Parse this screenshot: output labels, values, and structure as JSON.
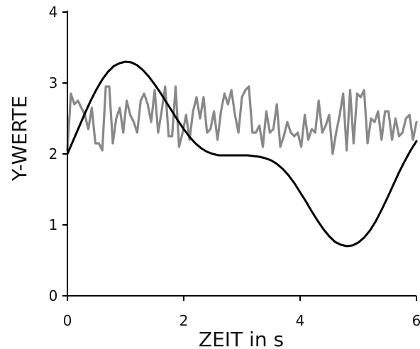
{
  "chart_data": {
    "type": "line",
    "xlabel": "ZEIT in s",
    "ylabel": "Y-WERTE",
    "xlim": [
      0,
      6
    ],
    "ylim": [
      0,
      4
    ],
    "xticks": [
      "0",
      "2",
      "4",
      "6"
    ],
    "yticks": [
      "0",
      "1",
      "2",
      "3",
      "4"
    ],
    "grid": false,
    "legend": "none",
    "series": [
      {
        "color": "#888888",
        "x": [
          0.0,
          0.06,
          0.12,
          0.18,
          0.24,
          0.3,
          0.36,
          0.42,
          0.48,
          0.54,
          0.6,
          0.66,
          0.72,
          0.78,
          0.84,
          0.9,
          0.96,
          1.02,
          1.08,
          1.14,
          1.2,
          1.26,
          1.32,
          1.38,
          1.44,
          1.5,
          1.56,
          1.62,
          1.68,
          1.74,
          1.8,
          1.86,
          1.92,
          1.98,
          2.04,
          2.1,
          2.16,
          2.22,
          2.28,
          2.34,
          2.4,
          2.46,
          2.52,
          2.58,
          2.64,
          2.7,
          2.76,
          2.82,
          2.88,
          2.94,
          3.0,
          3.06,
          3.12,
          3.18,
          3.24,
          3.3,
          3.36,
          3.42,
          3.48,
          3.54,
          3.6,
          3.66,
          3.72,
          3.78,
          3.84,
          3.9,
          3.96,
          4.02,
          4.08,
          4.14,
          4.2,
          4.26,
          4.32,
          4.38,
          4.44,
          4.5,
          4.56,
          4.62,
          4.68,
          4.74,
          4.8,
          4.86,
          4.92,
          4.98,
          5.04,
          5.1,
          5.16,
          5.22,
          5.28,
          5.34,
          5.4,
          5.46,
          5.52,
          5.58,
          5.64,
          5.7,
          5.76,
          5.82,
          5.88,
          5.94,
          6.0
        ],
        "values": [
          2.05,
          2.85,
          2.7,
          2.75,
          2.65,
          2.55,
          2.35,
          2.65,
          2.15,
          2.15,
          2.05,
          2.95,
          2.95,
          2.15,
          2.5,
          2.65,
          2.3,
          2.75,
          2.55,
          2.45,
          2.3,
          2.75,
          2.85,
          2.7,
          2.45,
          2.9,
          2.3,
          2.6,
          2.95,
          2.25,
          2.25,
          2.95,
          2.1,
          2.3,
          2.55,
          2.2,
          2.6,
          2.8,
          2.5,
          2.8,
          2.3,
          2.35,
          2.6,
          2.2,
          2.6,
          2.85,
          2.7,
          2.9,
          2.55,
          2.3,
          2.8,
          2.9,
          2.95,
          2.3,
          2.3,
          2.4,
          2.1,
          2.6,
          2.3,
          2.35,
          2.7,
          2.1,
          2.25,
          2.45,
          2.3,
          2.25,
          2.3,
          2.1,
          2.55,
          2.2,
          2.35,
          2.3,
          2.75,
          2.3,
          2.4,
          2.55,
          2.0,
          2.3,
          2.55,
          2.85,
          2.05,
          2.9,
          2.15,
          2.85,
          2.8,
          2.9,
          2.15,
          2.5,
          2.45,
          2.6,
          2.2,
          2.6,
          2.6,
          2.2,
          2.5,
          2.25,
          2.3,
          2.5,
          2.55,
          2.2,
          2.45
        ]
      },
      {
        "color": "#000000",
        "x": [
          0.0,
          0.1,
          0.2,
          0.3,
          0.4,
          0.5,
          0.6,
          0.7,
          0.8,
          0.9,
          1.0,
          1.1,
          1.2,
          1.3,
          1.4,
          1.5,
          1.6,
          1.7,
          1.8,
          1.9,
          2.0,
          2.1,
          2.2,
          2.3,
          2.4,
          2.5,
          2.6,
          2.7,
          2.8,
          2.9,
          3.0,
          3.1,
          3.2,
          3.3,
          3.4,
          3.5,
          3.6,
          3.7,
          3.8,
          3.9,
          4.0,
          4.1,
          4.2,
          4.3,
          4.4,
          4.5,
          4.6,
          4.7,
          4.8,
          4.9,
          5.0,
          5.1,
          5.2,
          5.3,
          5.4,
          5.5,
          5.6,
          5.7,
          5.8,
          5.9,
          6.0
        ],
        "values": [
          2.0,
          2.19,
          2.38,
          2.57,
          2.75,
          2.91,
          3.05,
          3.16,
          3.24,
          3.28,
          3.3,
          3.29,
          3.25,
          3.18,
          3.09,
          2.98,
          2.86,
          2.73,
          2.6,
          2.47,
          2.35,
          2.24,
          2.15,
          2.08,
          2.03,
          2.0,
          1.98,
          1.98,
          1.98,
          1.98,
          1.98,
          1.98,
          1.97,
          1.96,
          1.94,
          1.91,
          1.86,
          1.79,
          1.7,
          1.59,
          1.46,
          1.33,
          1.19,
          1.06,
          0.94,
          0.84,
          0.76,
          0.72,
          0.7,
          0.71,
          0.75,
          0.82,
          0.92,
          1.05,
          1.21,
          1.38,
          1.56,
          1.74,
          1.9,
          2.05,
          2.18
        ]
      }
    ]
  }
}
